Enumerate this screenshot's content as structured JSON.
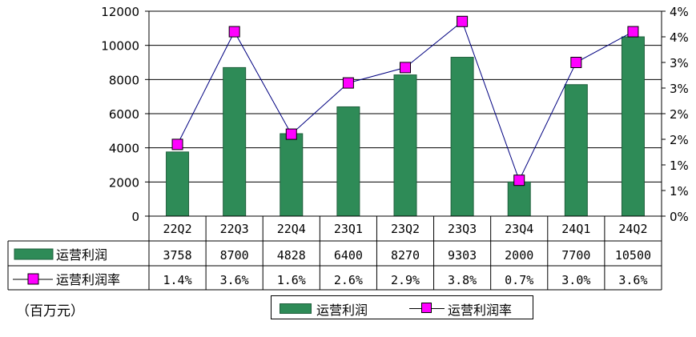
{
  "chart_data": {
    "type": "bar",
    "categories": [
      "22Q2",
      "22Q3",
      "22Q4",
      "23Q1",
      "23Q2",
      "23Q3",
      "23Q4",
      "24Q1",
      "24Q2"
    ],
    "series": [
      {
        "name": "运营利润",
        "type": "bar",
        "axis": "left",
        "values": [
          3758,
          8700,
          4828,
          6400,
          8270,
          9303,
          2000,
          7700,
          10500
        ],
        "color": "#2e8b57"
      },
      {
        "name": "运营利润率",
        "type": "line",
        "axis": "right",
        "values": [
          1.4,
          3.6,
          1.6,
          2.6,
          2.9,
          3.8,
          0.7,
          3.0,
          3.6
        ],
        "value_labels": [
          "1.4%",
          "3.6%",
          "1.6%",
          "2.6%",
          "2.9%",
          "3.8%",
          "0.7%",
          "3.0%",
          "3.6%"
        ],
        "color": "#ff00ff"
      }
    ],
    "left_axis": {
      "ylim": [
        0,
        12000
      ],
      "tick_labels": [
        "0",
        "2000",
        "4000",
        "6000",
        "8000",
        "10000",
        "12000"
      ]
    },
    "right_axis": {
      "ylim": [
        0,
        4
      ],
      "tick_labels": [
        "0%",
        "1%",
        "1%",
        "2%",
        "2%",
        "3%",
        "3%",
        "4%",
        "4%"
      ]
    },
    "grid": true,
    "data_table": true,
    "legend_position": "bottom-center",
    "unit_label": "（百万元）"
  }
}
